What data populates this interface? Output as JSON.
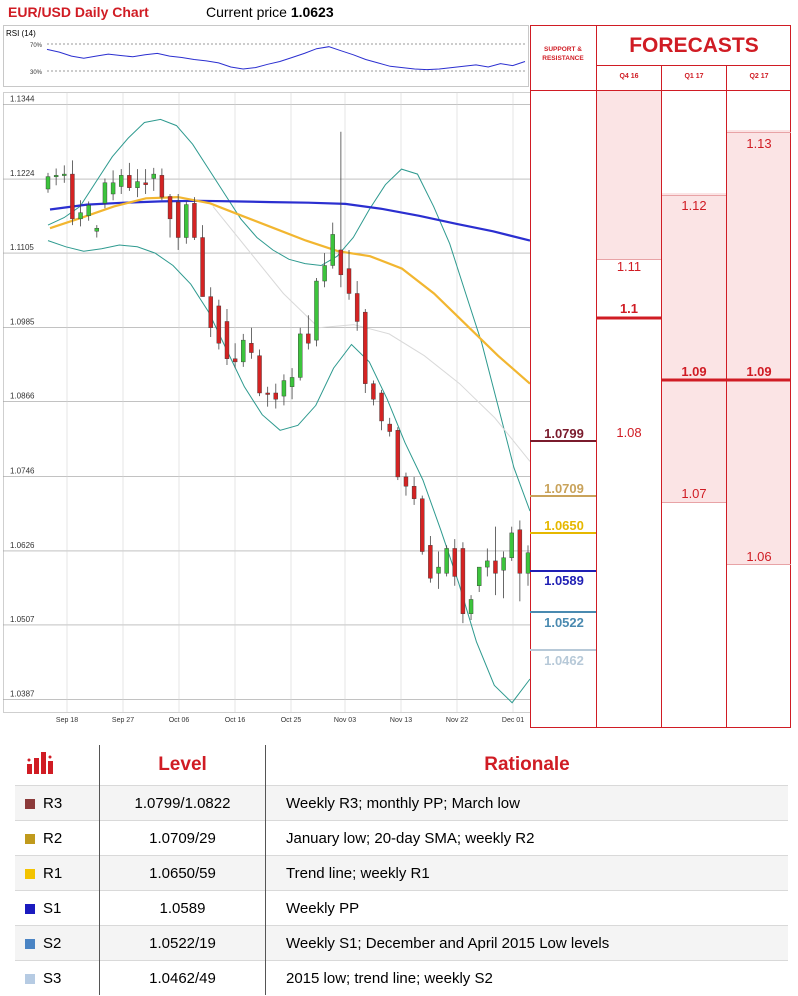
{
  "header": {
    "title": "EUR/USD Daily Chart",
    "price_label": "Current price",
    "price_value": "1.0623"
  },
  "rsi": {
    "label": "RSI (14)",
    "levels": [
      "70%",
      "30%"
    ]
  },
  "chart_data": [
    {
      "type": "line",
      "title": "RSI (14)",
      "ylim": [
        0,
        100
      ],
      "reference_lines": [
        70,
        30
      ],
      "series": [
        {
          "values": [
            62,
            58,
            52,
            49,
            52,
            55,
            53,
            51,
            54,
            56,
            52,
            50,
            47,
            45,
            42,
            36,
            33,
            35,
            40,
            44,
            50,
            56,
            63,
            66,
            60,
            54,
            47,
            42,
            37,
            35,
            33,
            32,
            33,
            35,
            37,
            39,
            36,
            41,
            38,
            44
          ]
        }
      ]
    },
    {
      "type": "candlestick",
      "title": "EUR/USD Daily Chart",
      "x_tick_labels": [
        "Sep 18",
        "Sep 27",
        "Oct 06",
        "Oct 16",
        "Oct 25",
        "Nov 03",
        "Nov 13",
        "Nov 22",
        "Dec 01"
      ],
      "y_tick_labels": [
        "1.1344",
        "1.1224",
        "1.1105",
        "1.0985",
        "1.0866",
        "1.0746",
        "1.0626",
        "1.0507",
        "1.0387"
      ],
      "ylim": [
        1.0367,
        1.1364
      ],
      "grid": true,
      "candles": [
        [
          1.1208,
          1.1234,
          1.1202,
          1.1228
        ],
        [
          1.1228,
          1.1241,
          1.1214,
          1.123
        ],
        [
          1.123,
          1.1246,
          1.1218,
          1.1232
        ],
        [
          1.1232,
          1.1254,
          1.115,
          1.116
        ],
        [
          1.116,
          1.119,
          1.1148,
          1.117
        ],
        [
          1.1165,
          1.1188,
          1.1157,
          1.1182
        ],
        [
          1.114,
          1.115,
          1.113,
          1.1145
        ],
        [
          1.1185,
          1.1225,
          1.1177,
          1.1218
        ],
        [
          1.12,
          1.1238,
          1.119,
          1.1218
        ],
        [
          1.1212,
          1.124,
          1.12,
          1.123
        ],
        [
          1.123,
          1.125,
          1.1205,
          1.121
        ],
        [
          1.121,
          1.124,
          1.1195,
          1.122
        ],
        [
          1.1218,
          1.124,
          1.12,
          1.1215
        ],
        [
          1.1225,
          1.1242,
          1.1205,
          1.1232
        ],
        [
          1.123,
          1.1241,
          1.119,
          1.1195
        ],
        [
          1.1196,
          1.12,
          1.113,
          1.116
        ],
        [
          1.1187,
          1.12,
          1.111,
          1.113
        ],
        [
          1.113,
          1.1188,
          1.112,
          1.1183
        ],
        [
          1.1185,
          1.1195,
          1.1126,
          1.113
        ],
        [
          1.113,
          1.115,
          1.1035,
          1.1035
        ],
        [
          1.1035,
          1.105,
          1.097,
          1.0985
        ],
        [
          1.102,
          1.103,
          1.095,
          1.096
        ],
        [
          1.0995,
          1.1015,
          1.0925,
          1.0935
        ],
        [
          1.0935,
          1.096,
          1.092,
          1.093
        ],
        [
          1.093,
          1.0975,
          1.0922,
          1.0965
        ],
        [
          1.096,
          1.0985,
          1.0935,
          1.0945
        ],
        [
          1.094,
          1.095,
          1.0875,
          1.088
        ],
        [
          1.088,
          1.089,
          1.0858,
          1.0878
        ],
        [
          1.088,
          1.0895,
          1.0855,
          1.087
        ],
        [
          1.0875,
          1.091,
          1.086,
          1.09
        ],
        [
          1.089,
          1.092,
          1.087,
          1.0905
        ],
        [
          1.0905,
          1.0985,
          1.09,
          1.0975
        ],
        [
          1.0975,
          1.1005,
          1.095,
          1.096
        ],
        [
          1.0965,
          1.1065,
          1.0955,
          1.106
        ],
        [
          1.106,
          1.1105,
          1.105,
          1.1085
        ],
        [
          1.1085,
          1.1154,
          1.108,
          1.1135
        ],
        [
          1.111,
          1.13,
          1.105,
          1.107
        ],
        [
          1.108,
          1.111,
          1.103,
          1.104
        ],
        [
          1.104,
          1.106,
          1.098,
          1.0995
        ],
        [
          1.101,
          1.1015,
          1.088,
          1.0895
        ],
        [
          1.0895,
          1.09,
          1.086,
          1.087
        ],
        [
          1.088,
          1.0885,
          1.082,
          1.0835
        ],
        [
          1.083,
          1.084,
          1.081,
          1.0818
        ],
        [
          1.082,
          1.0825,
          1.074,
          1.0745
        ],
        [
          1.0745,
          1.0752,
          1.0715,
          1.073
        ],
        [
          1.073,
          1.0745,
          1.07,
          1.071
        ],
        [
          1.071,
          1.0715,
          1.062,
          1.0625
        ],
        [
          1.0635,
          1.065,
          1.0575,
          1.0582
        ],
        [
          1.059,
          1.0625,
          1.0565,
          1.06
        ],
        [
          1.059,
          1.0635,
          1.0585,
          1.063
        ],
        [
          1.063,
          1.0645,
          1.057,
          1.0585
        ],
        [
          1.063,
          1.064,
          1.051,
          1.0525
        ],
        [
          1.0525,
          1.0555,
          1.0515,
          1.0548
        ],
        [
          1.057,
          1.06,
          1.056,
          1.06
        ],
        [
          1.06,
          1.063,
          1.0585,
          1.061
        ],
        [
          1.061,
          1.0665,
          1.0555,
          1.059
        ],
        [
          1.0595,
          1.0625,
          1.055,
          1.0615
        ],
        [
          1.0615,
          1.0665,
          1.061,
          1.0655
        ],
        [
          1.066,
          1.0675,
          1.0545,
          1.059
        ],
        [
          1.059,
          1.0635,
          1.057,
          1.0623
        ]
      ],
      "series": [
        {
          "name": "Upper Bollinger",
          "color": "#2e9a8f",
          "values": [
            1.115,
            1.1162,
            1.118,
            1.122,
            1.126,
            1.129,
            1.1315,
            1.132,
            1.131,
            1.128,
            1.124,
            1.12,
            1.116,
            1.113,
            1.111,
            1.1095,
            1.1088,
            1.1085,
            1.11,
            1.113,
            1.1175,
            1.1215,
            1.124,
            1.1232,
            1.118,
            1.112,
            1.104,
            1.096,
            1.086,
            1.076,
            1.069
          ]
        },
        {
          "name": "Lower Bollinger",
          "color": "#2e9a8f",
          "values": [
            1.1125,
            1.1115,
            1.1108,
            1.1112,
            1.1118,
            1.1115,
            1.1105,
            1.1085,
            1.1055,
            1.101,
            1.095,
            1.089,
            1.0845,
            1.082,
            1.0828,
            1.086,
            1.092,
            1.0958,
            1.093,
            1.087,
            1.08,
            1.074,
            1.066,
            1.0575,
            1.048,
            1.041,
            1.0382,
            1.042
          ]
        },
        {
          "name": "Blue MA",
          "color": "#2b2fd0",
          "values": [
            1.1175,
            1.1183,
            1.1186,
            1.1188,
            1.1189,
            1.1188,
            1.1187,
            1.1186,
            1.1184,
            1.1176,
            1.1165,
            1.1152,
            1.114,
            1.1125
          ]
        },
        {
          "name": "Yellow MA",
          "color": "#f2b630",
          "values": [
            1.1145,
            1.1162,
            1.118,
            1.1193,
            1.1195,
            1.1185,
            1.1165,
            1.1145,
            1.1125,
            1.1108,
            1.11,
            1.108,
            1.104,
            1.099,
            1.094,
            1.0895
          ]
        },
        {
          "name": "Grey MA",
          "color": "#d9d9d9",
          "values": [
            1.118,
            1.111,
            1.104,
            1.0985,
            1.099,
            1.0975,
            1.094,
            1.0895,
            1.084,
            1.077
          ]
        }
      ]
    }
  ],
  "support_resistance": {
    "title_line1": "SUPPORT &",
    "title_line2": "RESISTANCE",
    "levels": [
      {
        "value": "1.0799",
        "color": "#7a1b2c"
      },
      {
        "value": "1.0709",
        "color": "#c9a35b"
      },
      {
        "value": "1.0650",
        "color": "#e6b800"
      },
      {
        "value": "1.0589",
        "color": "#1f1fb4"
      },
      {
        "value": "1.0522",
        "color": "#4a8ab0"
      },
      {
        "value": "1.0462",
        "color": "#b7c9d8"
      }
    ]
  },
  "forecasts": {
    "title": "FORECASTS",
    "quarters": [
      "Q4 16",
      "Q1 17",
      "Q2 17"
    ],
    "q4": {
      "values": [
        "1.11",
        "1.1",
        "1.08"
      ]
    },
    "q1": {
      "values": [
        "1.12",
        "1.09",
        "1.07"
      ]
    },
    "q2": {
      "values": [
        "1.13",
        "1.09",
        "1.06"
      ]
    }
  },
  "table": {
    "headers": [
      "Level",
      "Rationale"
    ],
    "rows": [
      {
        "name": "R3",
        "level": "1.0799/1.0822",
        "rationale": "Weekly R3; monthly PP; March low",
        "color": "#8b3a3a"
      },
      {
        "name": "R2",
        "level": "1.0709/29",
        "rationale": "January low; 20-day SMA; weekly R2",
        "color": "#c09a1c"
      },
      {
        "name": "R1",
        "level": "1.0650/59",
        "rationale": "Trend line; weekly R1",
        "color": "#f3c300"
      },
      {
        "name": "S1",
        "level": "1.0589",
        "rationale": "Weekly PP",
        "color": "#1b1bbf"
      },
      {
        "name": "S2",
        "level": "1.0522/19",
        "rationale": "Weekly S1; December and April 2015 Low levels",
        "color": "#4a84c4"
      },
      {
        "name": "S3",
        "level": "1.0462/49",
        "rationale": "2015 low; trend line; weekly S2",
        "color": "#b6cbe3"
      }
    ]
  }
}
